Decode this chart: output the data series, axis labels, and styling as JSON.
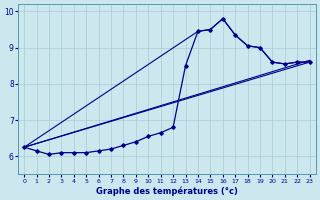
{
  "title": "Graphe des températures (°c)",
  "background_color": "#cce8ee",
  "grid_color": "#aaccd4",
  "line_color": "#00008b",
  "xlim": [
    -0.5,
    23.5
  ],
  "ylim": [
    5.5,
    10.2
  ],
  "yticks": [
    6,
    7,
    8,
    9,
    10
  ],
  "xticks": [
    0,
    1,
    2,
    3,
    4,
    5,
    6,
    7,
    8,
    9,
    10,
    11,
    12,
    13,
    14,
    15,
    16,
    17,
    18,
    19,
    20,
    21,
    22,
    23
  ],
  "main_x": [
    0,
    1,
    2,
    3,
    4,
    5,
    6,
    7,
    8,
    9,
    10,
    11,
    12,
    13,
    14,
    15,
    16,
    17,
    18,
    19,
    20,
    21,
    22,
    23
  ],
  "main_y": [
    6.25,
    6.15,
    6.05,
    6.1,
    6.1,
    6.1,
    6.15,
    6.2,
    6.3,
    6.4,
    6.55,
    6.65,
    6.8,
    8.5,
    9.45,
    9.5,
    9.8,
    9.35,
    9.05,
    9.0,
    8.6,
    8.55,
    8.6,
    8.6
  ],
  "line1_x": [
    0,
    14,
    15,
    16,
    17,
    18,
    19,
    20,
    21,
    22,
    23
  ],
  "line1_y": [
    6.25,
    9.45,
    9.5,
    9.8,
    9.35,
    9.05,
    9.0,
    8.6,
    8.55,
    8.6,
    8.6
  ],
  "line2_x": [
    0,
    23
  ],
  "line2_y": [
    6.25,
    8.6
  ],
  "line3_x": [
    0,
    23
  ],
  "line3_y": [
    6.25,
    8.65
  ]
}
